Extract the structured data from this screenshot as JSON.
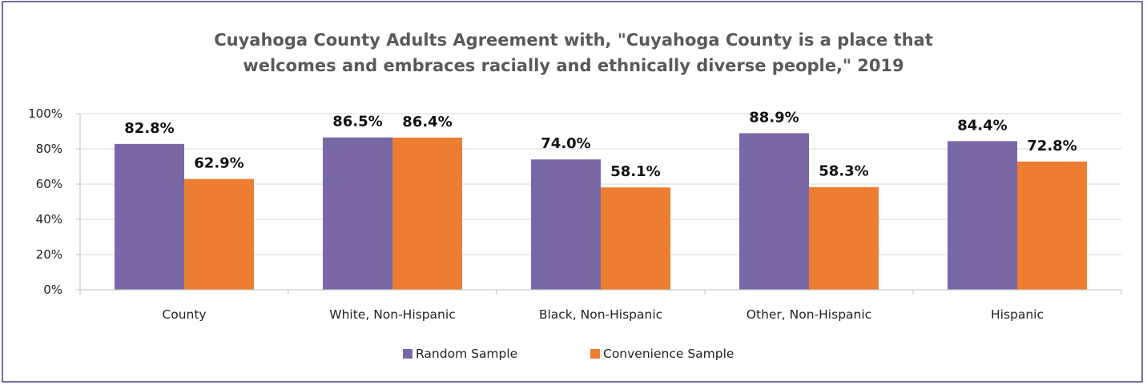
{
  "chart_data": {
    "type": "bar",
    "title_lines": [
      "Cuyahoga County Adults Agreement with, \"Cuyahoga County is a place that",
      "welcomes and embraces racially and ethnically diverse people,\" 2019"
    ],
    "categories": [
      "County",
      "White, Non-Hispanic",
      "Black, Non-Hispanic",
      "Other, Non-Hispanic",
      "Hispanic"
    ],
    "series": [
      {
        "name": "Random Sample",
        "color": "#7a68a6",
        "values": [
          82.8,
          86.5,
          74.0,
          88.9,
          84.4
        ],
        "labels": [
          "82.8%",
          "86.5%",
          "74.0%",
          "88.9%",
          "84.4%"
        ]
      },
      {
        "name": "Convenience Sample",
        "color": "#ed7d31",
        "values": [
          62.9,
          86.4,
          58.1,
          58.3,
          72.8
        ],
        "labels": [
          "62.9%",
          "86.4%",
          "58.1%",
          "58.3%",
          "72.8%"
        ]
      }
    ],
    "yticks": [
      "0%",
      "20%",
      "40%",
      "60%",
      "80%",
      "100%"
    ],
    "ylim": [
      0,
      100
    ],
    "grid": true,
    "legend_position": "bottom"
  }
}
